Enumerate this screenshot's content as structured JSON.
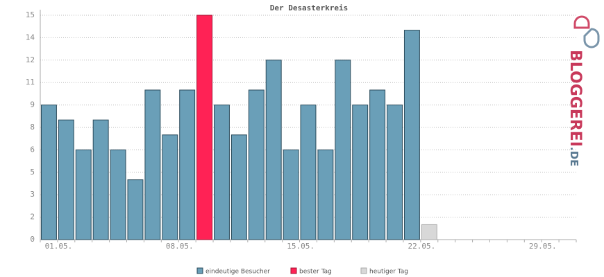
{
  "chart_data": {
    "type": "bar",
    "title": "Der Desasterkreis",
    "categories": [
      "01.05.",
      null,
      null,
      null,
      null,
      null,
      null,
      "08.05.",
      null,
      null,
      null,
      null,
      null,
      null,
      "15.05.",
      null,
      null,
      null,
      null,
      null,
      null,
      "22.05.",
      null,
      null,
      null,
      null,
      null,
      null,
      "29.05.",
      null,
      null
    ],
    "series": [
      {
        "name": "eindeutige Besucher",
        "color": "#6a9fb8",
        "values": [
          9,
          8,
          6,
          8,
          6,
          4,
          10,
          7,
          10,
          null,
          9,
          7,
          10,
          12,
          6,
          9,
          6,
          12,
          9,
          10,
          9,
          14,
          null,
          null,
          null,
          null,
          null,
          null,
          null,
          null,
          null
        ]
      },
      {
        "name": "bester Tag",
        "color": "#ff2255",
        "values": [
          null,
          null,
          null,
          null,
          null,
          null,
          null,
          null,
          null,
          15,
          null,
          null,
          null,
          null,
          null,
          null,
          null,
          null,
          null,
          null,
          null,
          null,
          null,
          null,
          null,
          null,
          null,
          null,
          null,
          null,
          null
        ]
      },
      {
        "name": "heutiger Tag",
        "color": "#d8d8d8",
        "values": [
          null,
          null,
          null,
          null,
          null,
          null,
          null,
          null,
          null,
          null,
          null,
          null,
          null,
          null,
          null,
          null,
          null,
          null,
          null,
          null,
          null,
          null,
          1,
          null,
          null,
          null,
          null,
          null,
          null,
          null,
          null
        ]
      }
    ],
    "ylim": [
      0,
      15
    ],
    "yticks": [
      0,
      {
        "value": 1.5,
        "label": "2"
      },
      3,
      {
        "value": 4.5,
        "label": "5"
      },
      6,
      {
        "value": 7.5,
        "label": "8"
      },
      9,
      {
        "value": 10.5,
        "label": "11"
      },
      12,
      {
        "value": 13.5,
        "label": "14"
      },
      15
    ],
    "grid": true,
    "legend": "bottom"
  },
  "logo": {
    "main": "BLOGGEREI",
    "suffix": ".DE"
  }
}
